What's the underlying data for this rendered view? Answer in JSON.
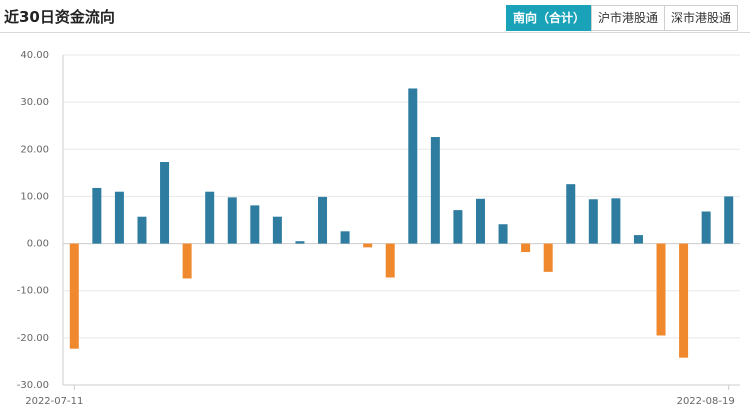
{
  "header": {
    "title": "近30日资金流向",
    "tabs": [
      "南向（合计）",
      "沪市港股通",
      "深市港股通"
    ],
    "active_tab": 0
  },
  "chart_data": {
    "type": "bar",
    "categories": [
      "2022-07-11",
      null,
      null,
      null,
      null,
      null,
      null,
      null,
      null,
      null,
      null,
      null,
      null,
      null,
      null,
      null,
      null,
      null,
      null,
      null,
      null,
      null,
      null,
      null,
      null,
      null,
      null,
      null,
      null,
      "2022-08-19"
    ],
    "values": [
      -22.3,
      11.8,
      11.0,
      5.7,
      17.3,
      -7.4,
      11.0,
      9.8,
      8.1,
      5.7,
      0.5,
      9.9,
      2.6,
      -0.8,
      -7.2,
      32.9,
      22.6,
      7.1,
      9.5,
      4.1,
      -1.8,
      -6.0,
      12.6,
      9.4,
      9.6,
      1.8,
      -19.5,
      -24.2,
      6.8,
      10.0
    ],
    "positive_color": "#2e7ca0",
    "negative_color": "#f0892e",
    "ylim": [
      -30,
      40
    ],
    "yticks": [
      {
        "value": -30,
        "label": "-30.00"
      },
      {
        "value": -20,
        "label": "-20.00"
      },
      {
        "value": -10,
        "label": "-10.00"
      },
      {
        "value": 0,
        "label": "0.00"
      },
      {
        "value": 10,
        "label": "10.00"
      },
      {
        "value": 20,
        "label": "20.00"
      },
      {
        "value": 30,
        "label": "30.00"
      },
      {
        "value": 40,
        "label": "40.00"
      }
    ],
    "grid": true
  }
}
